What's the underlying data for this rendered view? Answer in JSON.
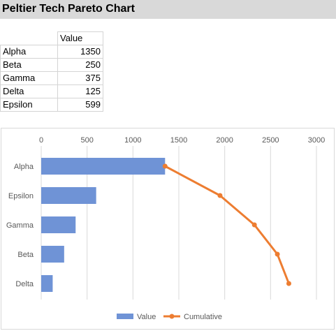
{
  "sheet": {
    "title": "Peltier Tech Pareto Chart",
    "table": {
      "header": {
        "name": "",
        "value": "Value"
      },
      "rows": [
        {
          "name": "Alpha",
          "value": "1350"
        },
        {
          "name": "Beta",
          "value": "250"
        },
        {
          "name": "Gamma",
          "value": "375"
        },
        {
          "name": "Delta",
          "value": "125"
        },
        {
          "name": "Epsilon",
          "value": "599"
        }
      ]
    }
  },
  "colors": {
    "bar": "#6f93d6",
    "line": "#ed7d31",
    "gridline": "#d9d9d9",
    "title_band": "#d9d9d9"
  },
  "chart_data": {
    "type": "bar",
    "orientation": "horizontal",
    "categories": [
      "Alpha",
      "Epsilon",
      "Gamma",
      "Beta",
      "Delta"
    ],
    "series": [
      {
        "name": "Value",
        "type": "bar",
        "values": [
          1350,
          599,
          375,
          250,
          125
        ]
      },
      {
        "name": "Cumulative",
        "type": "line",
        "values": [
          1350,
          1949,
          2324,
          2574,
          2699
        ]
      }
    ],
    "xlim": [
      0,
      3000
    ],
    "xticks": [
      0,
      500,
      1000,
      1500,
      2000,
      2500,
      3000
    ],
    "xtick_labels": [
      "0",
      "500",
      "1000",
      "1500",
      "2000",
      "2500",
      "3000"
    ],
    "axis_position": "top",
    "grid": true,
    "legend": {
      "position": "bottom",
      "entries": [
        "Value",
        "Cumulative"
      ]
    }
  }
}
